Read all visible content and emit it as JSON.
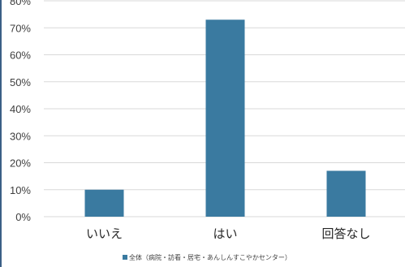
{
  "chart_data": {
    "type": "bar",
    "categories": [
      "いいえ",
      "はい",
      "回答なし"
    ],
    "series": [
      {
        "name": "全体（病院・訪看・居宅・あんしんすこやかセンター）",
        "values": [
          10,
          73,
          17
        ]
      }
    ],
    "yticks": [
      "0%",
      "10%",
      "20%",
      "30%",
      "40%",
      "50%",
      "60%",
      "70%",
      "80%"
    ],
    "ylim": [
      0,
      80
    ],
    "grid": true,
    "legend_position": "bottom",
    "bar_color": "#3a7aa0",
    "grid_color": "#d9d9d9"
  }
}
